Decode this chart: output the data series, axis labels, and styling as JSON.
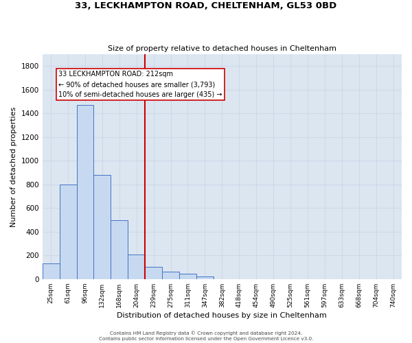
{
  "title1": "33, LECKHAMPTON ROAD, CHELTENHAM, GL53 0BD",
  "title2": "Size of property relative to detached houses in Cheltenham",
  "xlabel": "Distribution of detached houses by size in Cheltenham",
  "ylabel": "Number of detached properties",
  "footnote1": "Contains HM Land Registry data © Crown copyright and database right 2024.",
  "footnote2": "Contains public sector information licensed under the Open Government Licence v3.0.",
  "bar_labels": [
    "25sqm",
    "61sqm",
    "96sqm",
    "132sqm",
    "168sqm",
    "204sqm",
    "239sqm",
    "275sqm",
    "311sqm",
    "347sqm",
    "382sqm",
    "418sqm",
    "454sqm",
    "490sqm",
    "525sqm",
    "561sqm",
    "597sqm",
    "633sqm",
    "668sqm",
    "704sqm",
    "740sqm"
  ],
  "bar_values": [
    130,
    800,
    1470,
    880,
    495,
    210,
    105,
    65,
    45,
    25,
    0,
    0,
    0,
    0,
    0,
    0,
    0,
    0,
    0,
    0,
    0
  ],
  "bar_color": "#c6d9f0",
  "bar_edge_color": "#4472c4",
  "grid_color": "#d0d8e8",
  "background_color": "#dce6f1",
  "annotation_title": "33 LECKHAMPTON ROAD: 212sqm",
  "annotation_line1": "← 90% of detached houses are smaller (3,793)",
  "annotation_line2": "10% of semi-detached houses are larger (435) →",
  "vline_x_index": 6.0,
  "vline_color": "#cc0000",
  "ylim": [
    0,
    1900
  ],
  "yticks": [
    0,
    200,
    400,
    600,
    800,
    1000,
    1200,
    1400,
    1600,
    1800
  ]
}
